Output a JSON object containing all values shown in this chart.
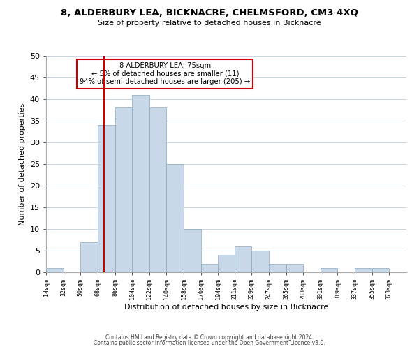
{
  "title1": "8, ALDERBURY LEA, BICKNACRE, CHELMSFORD, CM3 4XQ",
  "title2": "Size of property relative to detached houses in Bicknacre",
  "xlabel": "Distribution of detached houses by size in Bicknacre",
  "ylabel": "Number of detached properties",
  "footer1": "Contains HM Land Registry data © Crown copyright and database right 2024.",
  "footer2": "Contains public sector information licensed under the Open Government Licence v3.0.",
  "bin_labels": [
    "14sqm",
    "32sqm",
    "50sqm",
    "68sqm",
    "86sqm",
    "104sqm",
    "122sqm",
    "140sqm",
    "158sqm",
    "176sqm",
    "194sqm",
    "211sqm",
    "229sqm",
    "247sqm",
    "265sqm",
    "283sqm",
    "301sqm",
    "319sqm",
    "337sqm",
    "355sqm",
    "373sqm"
  ],
  "bar_heights": [
    1,
    0,
    7,
    34,
    38,
    41,
    38,
    25,
    10,
    2,
    4,
    6,
    5,
    2,
    2,
    0,
    1,
    0,
    1,
    1,
    0
  ],
  "bar_color": "#c8d8e8",
  "bar_edge_color": "#8aaac0",
  "grid_color": "#c8d4de",
  "property_line_x": 75,
  "property_line_label": "8 ALDERBURY LEA: 75sqm",
  "annotation_line1": "← 5% of detached houses are smaller (11)",
  "annotation_line2": "94% of semi-detached houses are larger (205) →",
  "annotation_box_edge": "#cc0000",
  "property_line_color": "#cc0000",
  "ylim": [
    0,
    50
  ],
  "bin_edges": [
    14,
    32,
    50,
    68,
    86,
    104,
    122,
    140,
    158,
    176,
    194,
    211,
    229,
    247,
    265,
    283,
    301,
    319,
    337,
    355,
    373,
    391
  ]
}
